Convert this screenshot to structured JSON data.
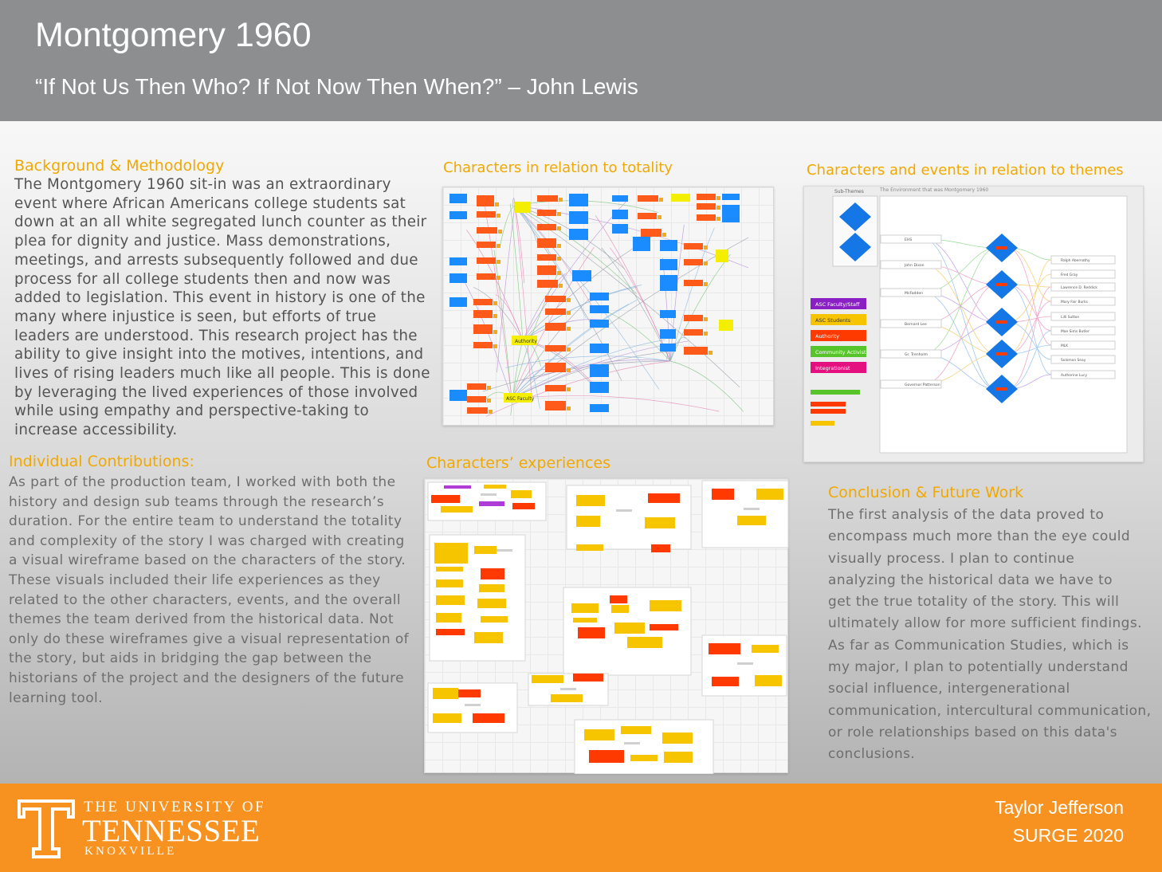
{
  "header": {
    "title": "Montgomery 1960",
    "subtitle": "“If Not Us Then Who? If Not Now Then When?” – John Lewis"
  },
  "background": {
    "heading": "Background & Methodology",
    "lines": [
      "The Montgomery 1960 sit-in was an extraordinary",
      "event where African Americans college students sat",
      "down at an all white segregated lunch counter as their",
      "plea for dignity and justice. Mass demonstrations,",
      "meetings, and arrests subsequently followed and due",
      "process for all college students then and now was",
      "added to legislation. This event in history is one of the",
      "many where injustice is seen, but efforts of true",
      "leaders are understood. This research project has the",
      "ability to give insight into the motives, intentions, and",
      "lives of rising leaders much like all people. This is done",
      "by leveraging the lived experiences of those involved",
      "while using empathy and perspective-taking to",
      "increase accessibility."
    ]
  },
  "contributions": {
    "heading": "Individual Contributions:",
    "lines": [
      "As part of the production team, I worked with both the",
      "history and design sub teams through the research’s",
      "duration. For the entire team to understand the totality",
      "and complexity of the story I was charged with creating",
      "a visual wireframe based on the characters of the story.",
      "These visuals included their life experiences as they",
      "related to the other characters, events, and the overall",
      "themes the team derived from the historical data. Not",
      "only do these wireframes give a visual representation of",
      "the story, but aids in bridging the gap between the",
      "historians of the project and the designers of the future",
      "learning tool."
    ]
  },
  "conclusion": {
    "heading": "Conclusion & Future Work",
    "lines": [
      "The first analysis of the data proved to",
      "encompass much more than the eye could",
      "visually process. I plan to continue",
      "analyzing the historical data we have to",
      "get the true totality of the story. This will",
      "ultimately allow for more sufficient findings.",
      "As far as Communication Studies, which is",
      "my major, I plan to potentially understand",
      "social influence, intergenerational",
      "communication, intercultural communication,",
      "or role relationships based on this data's",
      "conclusions."
    ]
  },
  "figures": {
    "totality": {
      "heading": "Characters in relation to totality",
      "labels": {
        "authority": "Authority",
        "asc_faculty": "ASC Faculty"
      }
    },
    "themes": {
      "heading": "Characters and events in relation to themes",
      "subthemes_label": "Sub-Themes",
      "board_title": "The Environment that was Montgomery 1960",
      "legend": [
        "ASC Faculty/Staff",
        "ASC Students",
        "Authority",
        "Community Activist",
        "Integrationist"
      ],
      "legend_colors": [
        "#8a1fc4",
        "#f6c500",
        "#ff3a00",
        "#57c42c",
        "#e5107f"
      ],
      "left_names": [
        "EHS",
        "John Dixon",
        "McFadden",
        "Bernard Lee",
        "Gr. Trenholm",
        "Governor Patterson"
      ],
      "right_names": [
        "Ralph Abernathy",
        "Fred Gray",
        "Lawrence D. Reddick",
        "Mary Fair Burks",
        "Lilli Sutton",
        "Mae Sims Butler",
        "MLK",
        "Solomon Seay",
        "Authorine Lucy"
      ]
    },
    "experiences": {
      "heading": "Characters’ experiences"
    }
  },
  "footer": {
    "university_line1": "THE UNIVERSITY OF",
    "university_line2": "TENNESSEE",
    "university_line3": "KNOXVILLE",
    "author": "Taylor Jefferson",
    "event": "SURGE 2020"
  },
  "colors": {
    "header_bg": "#8d8e90",
    "heading_gold": "#f1a800",
    "footer_orange": "#f7911f"
  }
}
